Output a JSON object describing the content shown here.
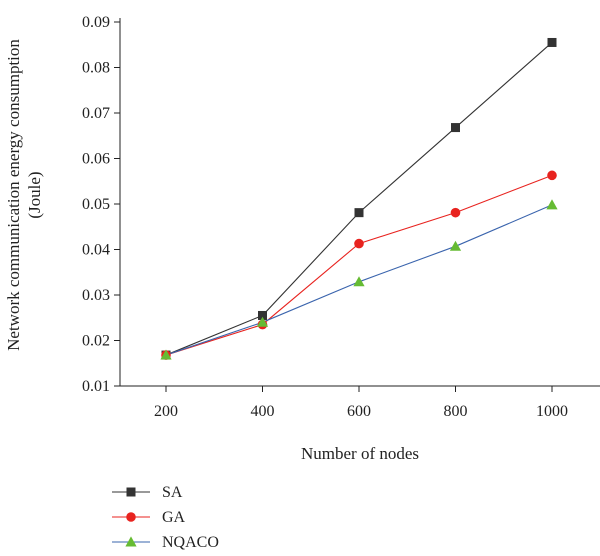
{
  "chart_data": {
    "type": "line",
    "xlabel": "Number of nodes",
    "ylabel_lines": [
      "Network communication energy consumption",
      "(Joule)"
    ],
    "x": [
      200,
      400,
      600,
      800,
      1000
    ],
    "xticks": [
      "200",
      "400",
      "600",
      "800",
      "1000"
    ],
    "ylim": [
      0.01,
      0.09
    ],
    "yticks": [
      "0.01",
      "0.02",
      "0.03",
      "0.04",
      "0.05",
      "0.06",
      "0.07",
      "0.08",
      "0.09"
    ],
    "legend_position": "bottom-left",
    "series": [
      {
        "name": "SA",
        "values": [
          0.0168,
          0.0255,
          0.0481,
          0.0668,
          0.0855
        ],
        "color": "#333333",
        "marker": "square"
      },
      {
        "name": "GA",
        "values": [
          0.0168,
          0.0235,
          0.0413,
          0.0481,
          0.0563
        ],
        "color": "#e8231f",
        "marker": "circle"
      },
      {
        "name": "NQACO",
        "values": [
          0.0168,
          0.024,
          0.0329,
          0.0407,
          0.0498
        ],
        "color": "#3a64ad",
        "marker": "triangle",
        "marker_color": "#66bb33"
      }
    ]
  }
}
